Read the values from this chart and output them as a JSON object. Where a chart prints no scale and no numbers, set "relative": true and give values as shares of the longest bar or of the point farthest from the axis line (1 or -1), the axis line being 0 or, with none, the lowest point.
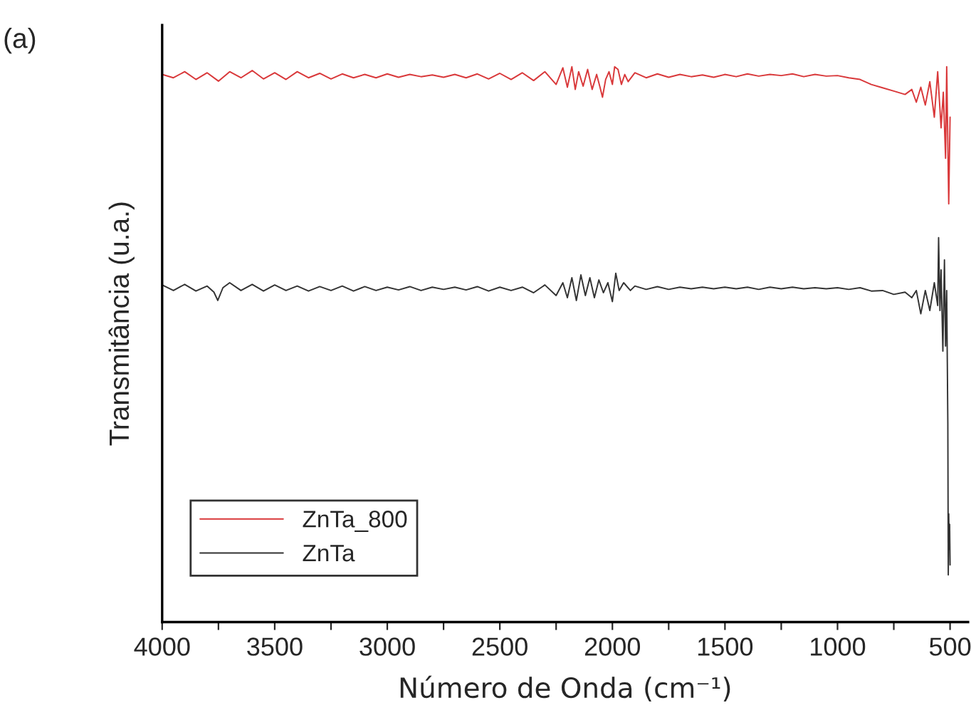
{
  "chart_data": {
    "type": "line",
    "title": "(a)",
    "xlabel": "Número de Onda (cm⁻¹)",
    "ylabel": "Transmitância (u.a.)",
    "relative": true,
    "xlim": [
      4000,
      420
    ],
    "xticks": [
      4000,
      {
        "value": 3750,
        "label": null
      },
      3500,
      {
        "value": 3250,
        "label": null
      },
      3000,
      {
        "value": 2750,
        "label": null
      },
      2500,
      {
        "value": 2250,
        "label": null
      },
      2000,
      {
        "value": 1750,
        "label": null
      },
      1500,
      {
        "value": 1250,
        "label": null
      },
      1000,
      {
        "value": 750,
        "label": null
      },
      500
    ],
    "legend": "bottom left",
    "grid": false,
    "tick_labels": "x",
    "series": [
      {
        "name": "ZnTa_800",
        "color": "#d9383a",
        "x": [
          4000,
          3950,
          3900,
          3850,
          3800,
          3750,
          3700,
          3650,
          3600,
          3550,
          3500,
          3450,
          3400,
          3350,
          3300,
          3250,
          3200,
          3150,
          3100,
          3050,
          3000,
          2950,
          2900,
          2850,
          2800,
          2750,
          2700,
          2650,
          2600,
          2550,
          2500,
          2450,
          2400,
          2350,
          2300,
          2250,
          2220,
          2200,
          2180,
          2165,
          2150,
          2130,
          2110,
          2090,
          2070,
          2055,
          2044,
          2030,
          2015,
          2000,
          1990,
          1975,
          1960,
          1945,
          1930,
          1900,
          1850,
          1800,
          1750,
          1700,
          1650,
          1600,
          1550,
          1500,
          1450,
          1400,
          1350,
          1300,
          1250,
          1200,
          1150,
          1100,
          1050,
          1000,
          950,
          900,
          850,
          800,
          750,
          700,
          670,
          650,
          630,
          610,
          590,
          570,
          555,
          540,
          530,
          520,
          515,
          510,
          506,
          500
        ],
        "values": [
          0.986,
          0.98,
          0.991,
          0.977,
          0.989,
          0.974,
          0.991,
          0.98,
          0.993,
          0.978,
          0.989,
          0.977,
          0.991,
          0.98,
          0.988,
          0.978,
          0.987,
          0.98,
          0.986,
          0.98,
          0.987,
          0.981,
          0.986,
          0.982,
          0.985,
          0.981,
          0.986,
          0.98,
          0.987,
          0.978,
          0.988,
          0.977,
          0.989,
          0.975,
          0.991,
          0.968,
          0.998,
          0.963,
          1.0,
          0.959,
          0.991,
          0.965,
          0.995,
          0.959,
          0.986,
          0.963,
          0.945,
          0.977,
          0.991,
          0.968,
          1.0,
          0.995,
          0.968,
          0.986,
          0.973,
          0.989,
          0.98,
          0.987,
          0.981,
          0.986,
          0.982,
          0.985,
          0.981,
          0.986,
          0.982,
          0.987,
          0.983,
          0.986,
          0.984,
          0.987,
          0.982,
          0.986,
          0.983,
          0.984,
          0.98,
          0.977,
          0.968,
          0.962,
          0.956,
          0.95,
          0.959,
          0.936,
          0.963,
          0.931,
          0.973,
          0.909,
          0.991,
          0.89,
          0.954,
          0.835,
          1.0,
          0.863,
          0.753,
          0.909
        ]
      },
      {
        "name": "ZnTa",
        "color": "#333333",
        "x": [
          4000,
          3950,
          3900,
          3850,
          3800,
          3770,
          3753,
          3730,
          3700,
          3650,
          3600,
          3550,
          3500,
          3450,
          3400,
          3350,
          3300,
          3250,
          3200,
          3150,
          3100,
          3050,
          3000,
          2950,
          2900,
          2850,
          2800,
          2750,
          2700,
          2650,
          2600,
          2550,
          2500,
          2450,
          2400,
          2350,
          2300,
          2250,
          2220,
          2200,
          2180,
          2160,
          2140,
          2120,
          2100,
          2080,
          2060,
          2040,
          2020,
          2000,
          1985,
          1970,
          1950,
          1920,
          1900,
          1850,
          1800,
          1750,
          1700,
          1650,
          1600,
          1550,
          1500,
          1450,
          1400,
          1350,
          1300,
          1250,
          1200,
          1150,
          1100,
          1050,
          1000,
          950,
          900,
          850,
          800,
          750,
          700,
          670,
          650,
          630,
          610,
          590,
          570,
          555,
          551,
          545,
          540,
          535,
          532,
          525,
          520,
          515,
          510,
          508,
          506,
          504,
          502,
          500
        ],
        "values": [
          0.607,
          0.597,
          0.608,
          0.596,
          0.605,
          0.594,
          0.579,
          0.602,
          0.611,
          0.597,
          0.608,
          0.596,
          0.607,
          0.597,
          0.605,
          0.596,
          0.604,
          0.597,
          0.605,
          0.596,
          0.604,
          0.597,
          0.603,
          0.598,
          0.604,
          0.597,
          0.603,
          0.599,
          0.603,
          0.598,
          0.604,
          0.596,
          0.603,
          0.597,
          0.603,
          0.593,
          0.607,
          0.588,
          0.611,
          0.584,
          0.62,
          0.579,
          0.625,
          0.588,
          0.62,
          0.584,
          0.616,
          0.593,
          0.611,
          0.577,
          0.628,
          0.597,
          0.611,
          0.597,
          0.605,
          0.599,
          0.604,
          0.599,
          0.603,
          0.6,
          0.603,
          0.6,
          0.603,
          0.6,
          0.603,
          0.599,
          0.603,
          0.6,
          0.603,
          0.6,
          0.602,
          0.6,
          0.602,
          0.599,
          0.602,
          0.596,
          0.597,
          0.59,
          0.594,
          0.584,
          0.597,
          0.555,
          0.597,
          0.561,
          0.611,
          0.57,
          0.692,
          0.561,
          0.634,
          0.543,
          0.488,
          0.652,
          0.497,
          0.597,
          0.359,
          0.085,
          0.195,
          0.131,
          0.176,
          0.103
        ]
      }
    ]
  }
}
